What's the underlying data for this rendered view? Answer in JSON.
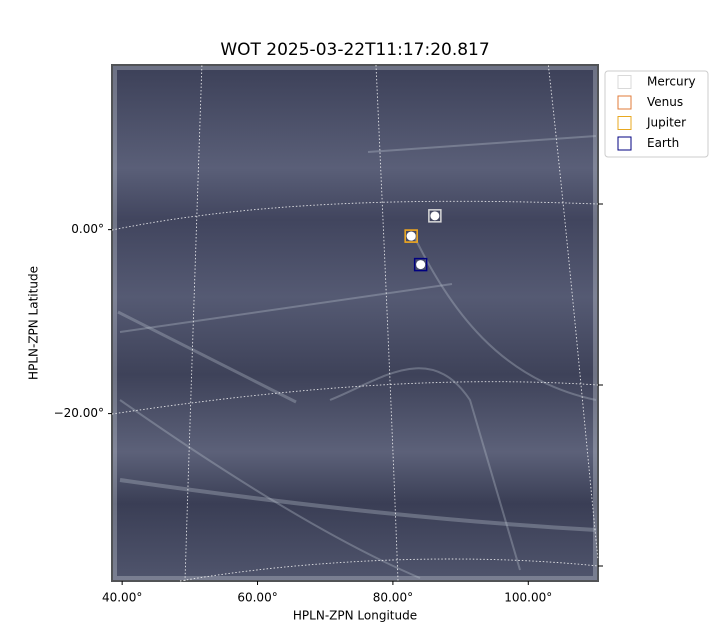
{
  "chart_data": {
    "type": "image",
    "title": "WOT 2025-03-22T11:17:20.817",
    "xlabel": "HPLN-ZPN Longitude",
    "ylabel": "HPLN-ZPN Latitude",
    "xlim": [
      38.5,
      110.3
    ],
    "ylim": [
      -38.2,
      17.9
    ],
    "xticks": [
      {
        "value": 40,
        "label": "40.00°"
      },
      {
        "value": 60,
        "label": "60.00°"
      },
      {
        "value": 80,
        "label": "80.00°"
      },
      {
        "value": 100,
        "label": "100.00°"
      }
    ],
    "yticks": [
      {
        "value": 0,
        "label": "0.00°"
      },
      {
        "value": -20,
        "label": "−20.00°"
      }
    ],
    "series": [
      {
        "name": "Mercury",
        "color": "#d9d9d9",
        "x": [
          86.2
        ],
        "values": [
          1.5
        ]
      },
      {
        "name": "Venus",
        "color": "#e07b39",
        "x": [
          82.7
        ],
        "values": [
          -0.7
        ]
      },
      {
        "name": "Jupiter",
        "color": "#e8a820",
        "x": [
          82.7
        ],
        "values": [
          -0.7
        ]
      },
      {
        "name": "Earth",
        "color": "#000080",
        "x": [
          84.1
        ],
        "values": [
          -3.8
        ]
      }
    ]
  }
}
